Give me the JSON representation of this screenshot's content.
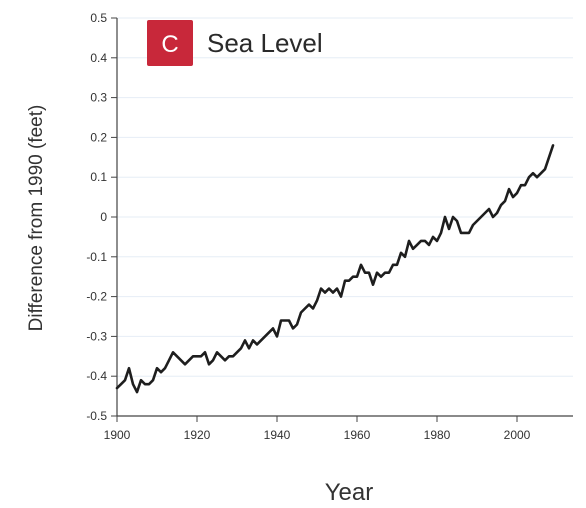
{
  "panel": {
    "badge_letter": "C",
    "badge_color": "#c8283a"
  },
  "chart_data": {
    "type": "line",
    "title": "Sea Level",
    "xlabel": "Year",
    "ylabel": "Difference from 1990 (feet)",
    "xlim": [
      1900,
      2014
    ],
    "ylim": [
      -0.5,
      0.5
    ],
    "xticks": [
      "1900",
      "1920",
      "1940",
      "1960",
      "1980",
      "2000"
    ],
    "yticks": [
      "0.5",
      "0.4",
      "0.3",
      "0.2",
      "0.1",
      "0",
      "-0.1",
      "-0.2",
      "-0.3",
      "-0.4",
      "-0.5"
    ],
    "grid": true,
    "line_color": "#1e1e1e",
    "series": [
      {
        "x": [
          1900,
          1901,
          1902,
          1903,
          1904,
          1905,
          1906,
          1907,
          1908,
          1909,
          1910,
          1911,
          1912,
          1913,
          1914,
          1915,
          1916,
          1917,
          1918,
          1919,
          1920,
          1921,
          1922,
          1923,
          1924,
          1925,
          1926,
          1927,
          1928,
          1929,
          1930,
          1931,
          1932,
          1933,
          1934,
          1935,
          1936,
          1937,
          1938,
          1939,
          1940,
          1941,
          1942,
          1943,
          1944,
          1945,
          1946,
          1947,
          1948,
          1949,
          1950,
          1951,
          1952,
          1953,
          1954,
          1955,
          1956,
          1957,
          1958,
          1959,
          1960,
          1961,
          1962,
          1963,
          1964,
          1965,
          1966,
          1967,
          1968,
          1969,
          1970,
          1971,
          1972,
          1973,
          1974,
          1975,
          1976,
          1977,
          1978,
          1979,
          1980,
          1981,
          1982,
          1983,
          1984,
          1985,
          1986,
          1987,
          1988,
          1989,
          1990,
          1991,
          1992,
          1993,
          1994,
          1995,
          1996,
          1997,
          1998,
          1999,
          2000,
          2001,
          2002,
          2003,
          2004,
          2005,
          2006,
          2007,
          2008,
          2009
        ],
        "values": [
          -0.43,
          -0.42,
          -0.41,
          -0.38,
          -0.42,
          -0.44,
          -0.41,
          -0.42,
          -0.42,
          -0.41,
          -0.38,
          -0.39,
          -0.38,
          -0.36,
          -0.34,
          -0.35,
          -0.36,
          -0.37,
          -0.36,
          -0.35,
          -0.35,
          -0.35,
          -0.34,
          -0.37,
          -0.36,
          -0.34,
          -0.35,
          -0.36,
          -0.35,
          -0.35,
          -0.34,
          -0.33,
          -0.31,
          -0.33,
          -0.31,
          -0.32,
          -0.31,
          -0.3,
          -0.29,
          -0.28,
          -0.3,
          -0.26,
          -0.26,
          -0.26,
          -0.28,
          -0.27,
          -0.24,
          -0.23,
          -0.22,
          -0.23,
          -0.21,
          -0.18,
          -0.19,
          -0.18,
          -0.19,
          -0.18,
          -0.2,
          -0.16,
          -0.16,
          -0.15,
          -0.15,
          -0.12,
          -0.14,
          -0.14,
          -0.17,
          -0.14,
          -0.15,
          -0.14,
          -0.14,
          -0.12,
          -0.12,
          -0.09,
          -0.1,
          -0.06,
          -0.08,
          -0.07,
          -0.06,
          -0.06,
          -0.07,
          -0.05,
          -0.06,
          -0.04,
          0.0,
          -0.03,
          0.0,
          -0.01,
          -0.04,
          -0.04,
          -0.04,
          -0.02,
          -0.01,
          0.0,
          0.01,
          0.02,
          0.0,
          0.01,
          0.03,
          0.04,
          0.07,
          0.05,
          0.06,
          0.08,
          0.08,
          0.1,
          0.11,
          0.1,
          0.11,
          0.12,
          0.15,
          0.18
        ]
      }
    ]
  }
}
